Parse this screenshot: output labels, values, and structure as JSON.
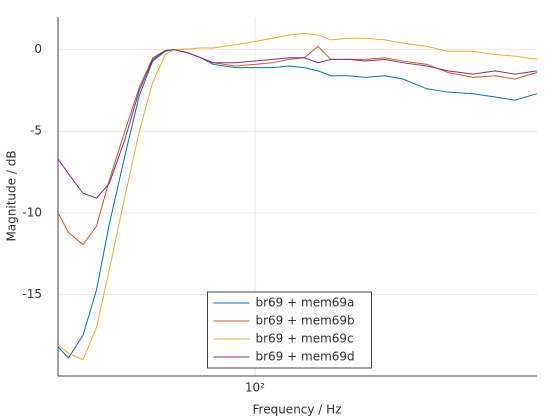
{
  "chart_data": {
    "type": "line",
    "xlabel": "Frequency / Hz",
    "ylabel": "Magnitude / dB",
    "x": [
      35,
      37,
      40,
      43,
      46,
      50,
      54,
      58,
      62,
      65,
      70,
      75,
      80,
      90,
      100,
      110,
      120,
      130,
      140,
      150,
      165,
      180,
      200,
      220,
      250,
      280,
      320,
      360,
      400,
      450
    ],
    "series": [
      {
        "name": "br69 + mem69a",
        "color": "#0072bd",
        "values": [
          -18.2,
          -18.9,
          -17.5,
          -14.7,
          -10.7,
          -6.5,
          -2.8,
          -0.7,
          -0.1,
          0,
          -0.2,
          -0.5,
          -0.9,
          -1.1,
          -1.1,
          -1.1,
          -1.0,
          -1.1,
          -1.3,
          -1.6,
          -1.6,
          -1.7,
          -1.6,
          -1.8,
          -2.4,
          -2.6,
          -2.7,
          -2.9,
          -3.1,
          -2.7
        ]
      },
      {
        "name": "br69 + mem69b",
        "color": "#d95319",
        "values": [
          -10,
          -11.2,
          -11.95,
          -10.8,
          -8,
          -5,
          -2.3,
          -0.5,
          -0.05,
          0,
          -0.2,
          -0.5,
          -0.8,
          -1.0,
          -0.9,
          -0.8,
          -0.6,
          -0.5,
          0.2,
          -0.6,
          -0.6,
          -0.6,
          -0.5,
          -0.7,
          -0.9,
          -1.4,
          -1.7,
          -1.6,
          -1.8,
          -1.4
        ]
      },
      {
        "name": "br69 + mem69c",
        "color": "#edb120",
        "values": [
          -18.1,
          -18.6,
          -19,
          -17,
          -13.5,
          -9,
          -5,
          -2,
          -0.3,
          0,
          0.05,
          0.1,
          0.1,
          0.3,
          0.5,
          0.7,
          0.9,
          1.0,
          0.9,
          0.6,
          0.7,
          0.7,
          0.6,
          0.4,
          0.2,
          -0.1,
          -0.1,
          -0.3,
          -0.4,
          -0.6
        ]
      },
      {
        "name": "br69 + mem69d",
        "color": "#7e2f8e",
        "values": [
          -6.7,
          -7.6,
          -8.8,
          -9.1,
          -8.2,
          -5.5,
          -2.5,
          -0.6,
          -0.05,
          0,
          -0.2,
          -0.5,
          -0.8,
          -0.8,
          -0.7,
          -0.6,
          -0.5,
          -0.5,
          -0.8,
          -0.6,
          -0.6,
          -0.7,
          -0.6,
          -0.8,
          -1.0,
          -1.3,
          -1.5,
          -1.3,
          -1.5,
          -1.3
        ]
      }
    ],
    "xscale": "log",
    "xlim": [
      35,
      450
    ],
    "xticks": [
      {
        "value": 100,
        "label": "10²"
      }
    ],
    "ylim": [
      -20,
      2
    ],
    "yticks": [
      0,
      -5,
      -10,
      -15
    ],
    "grid": true,
    "legend": "bottom"
  }
}
